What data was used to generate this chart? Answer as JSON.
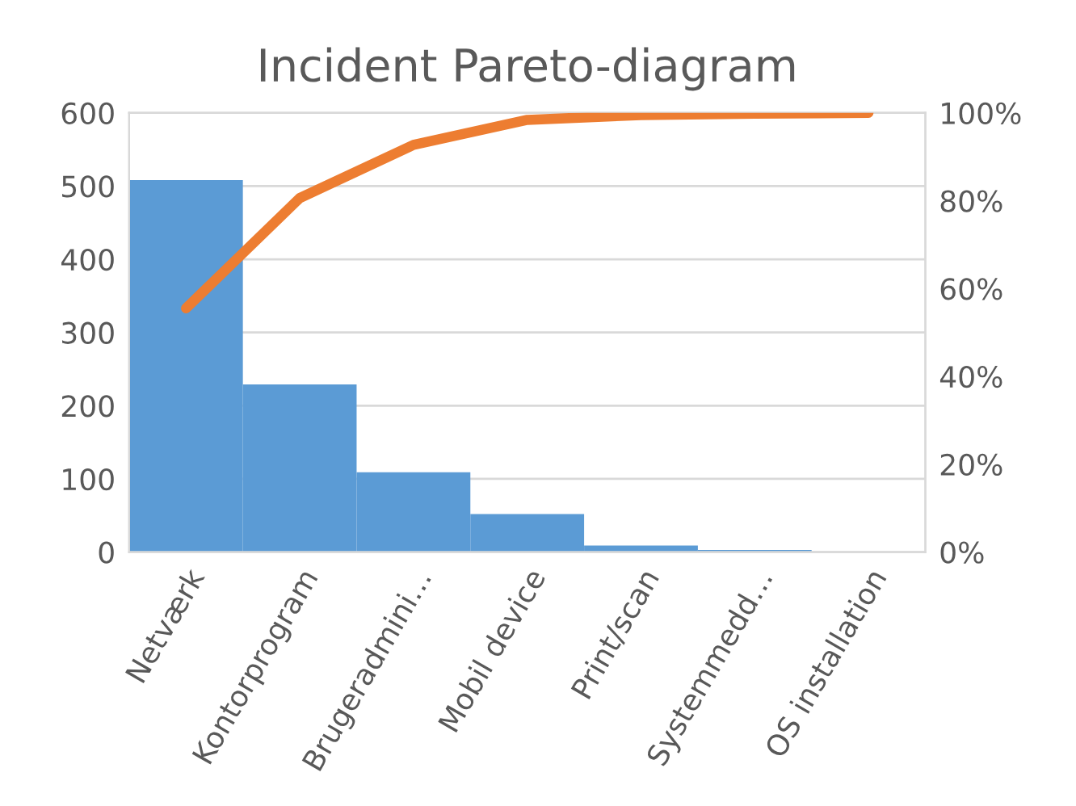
{
  "chart_data": {
    "type": "bar",
    "title": "Incident Pareto-diagram",
    "categories": [
      "Netværk",
      "Kontorprogram",
      "Brugeradmini…",
      "Mobil device",
      "Print/scan",
      "Systemmedd…",
      "OS installation"
    ],
    "series": [
      {
        "color": "#5b9bd5",
        "values": [
          508,
          229,
          109,
          52,
          9,
          3,
          0
        ]
      },
      {
        "type": "line",
        "axis": "y2",
        "color": "#ed7d31",
        "values": [
          55.5,
          80.6,
          92.7,
          98.4,
          99.5,
          99.8,
          100
        ]
      }
    ],
    "ylim": [
      0,
      600
    ],
    "yticks": [
      0,
      100,
      200,
      300,
      400,
      500,
      600
    ],
    "y2lim": [
      0,
      100
    ],
    "y2ticks": [
      {
        "value": 0,
        "label": "0%"
      },
      {
        "value": 20,
        "label": "20%"
      },
      {
        "value": 40,
        "label": "40%"
      },
      {
        "value": 60,
        "label": "60%"
      },
      {
        "value": 80,
        "label": "80%"
      },
      {
        "value": 100,
        "label": "100%"
      }
    ],
    "grid": "y",
    "legend": false,
    "marker": "none",
    "line_style": "solid"
  }
}
